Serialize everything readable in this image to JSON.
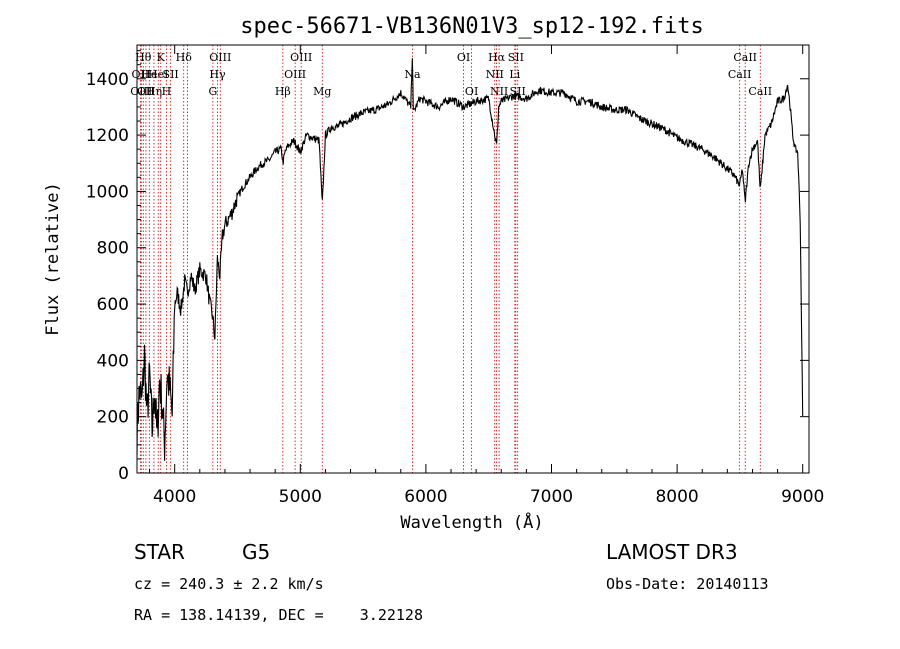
{
  "chart_data": {
    "type": "line",
    "title": "spec-56671-VB136N01V3_sp12-192.fits",
    "xlabel": "Wavelength (Å)",
    "ylabel": "Flux (relative)",
    "xlim": [
      3700,
      9050
    ],
    "ylim": [
      0,
      1520
    ],
    "x_ticks": [
      4000,
      5000,
      6000,
      7000,
      8000,
      9000
    ],
    "y_ticks": [
      0,
      200,
      400,
      600,
      800,
      1000,
      1200,
      1400
    ],
    "grid": false,
    "series": [
      {
        "color": "#000000",
        "x": [
          3700,
          3720,
          3740,
          3760,
          3780,
          3800,
          3820,
          3840,
          3860,
          3880,
          3900,
          3920,
          3940,
          3960,
          3980,
          4000,
          4020,
          4050,
          4080,
          4100,
          4130,
          4160,
          4200,
          4250,
          4280,
          4300,
          4320,
          4340,
          4360,
          4380,
          4400,
          4450,
          4500,
          4550,
          4600,
          4650,
          4700,
          4750,
          4800,
          4850,
          4861,
          4880,
          4900,
          4950,
          5000,
          5050,
          5100,
          5150,
          5175,
          5200,
          5250,
          5300,
          5400,
          5500,
          5600,
          5700,
          5800,
          5880,
          5893,
          5900,
          5950,
          6000,
          6100,
          6200,
          6300,
          6400,
          6500,
          6563,
          6580,
          6600,
          6700,
          6800,
          6900,
          7000,
          7100,
          7200,
          7300,
          7400,
          7500,
          7600,
          7700,
          7800,
          7900,
          8000,
          8100,
          8200,
          8300,
          8400,
          8450,
          8498,
          8520,
          8542,
          8570,
          8600,
          8640,
          8662,
          8700,
          8750,
          8800,
          8850,
          8880,
          8900,
          8920,
          8940,
          8960,
          8980,
          9000
        ],
        "y": [
          150,
          300,
          250,
          420,
          200,
          350,
          150,
          300,
          120,
          330,
          250,
          100,
          350,
          300,
          200,
          600,
          640,
          580,
          680,
          640,
          700,
          650,
          720,
          700,
          600,
          560,
          480,
          760,
          700,
          840,
          880,
          920,
          980,
          1020,
          1050,
          1080,
          1100,
          1110,
          1140,
          1150,
          1100,
          1140,
          1160,
          1180,
          1140,
          1200,
          1190,
          1180,
          950,
          1200,
          1230,
          1230,
          1260,
          1280,
          1290,
          1310,
          1350,
          1300,
          1500,
          1280,
          1330,
          1320,
          1300,
          1330,
          1300,
          1320,
          1330,
          1160,
          1300,
          1320,
          1340,
          1330,
          1360,
          1350,
          1350,
          1320,
          1320,
          1300,
          1290,
          1290,
          1260,
          1240,
          1220,
          1190,
          1170,
          1150,
          1120,
          1080,
          1060,
          1020,
          1080,
          960,
          1100,
          1150,
          1180,
          1000,
          1200,
          1240,
          1320,
          1330,
          1380,
          1300,
          1200,
          1150,
          1140,
          900,
          200
        ]
      }
    ],
    "lines": [
      {
        "wl": 3727,
        "label": "OII",
        "row": 2
      },
      {
        "wl": 3734,
        "label": "OIII",
        "row": 3
      },
      {
        "wl": 3750,
        "label": "Hθ",
        "row": 1
      },
      {
        "wl": 3771,
        "label": "OII",
        "row": 3
      },
      {
        "wl": 3798,
        "label": "He",
        "row": 2
      },
      {
        "wl": 3835,
        "label": "Hη",
        "row": 3
      },
      {
        "wl": 3869,
        "label": "HeI",
        "row": 2
      },
      {
        "wl": 3889,
        "label": "K",
        "row": 1
      },
      {
        "wl": 3934,
        "label": "H",
        "row": 3
      },
      {
        "wl": 3968,
        "label": "SII",
        "row": 2
      },
      {
        "wl": 4072,
        "label": "Hδ",
        "row": 1
      },
      {
        "wl": 4102,
        "label": "",
        "row": 0
      },
      {
        "wl": 4304,
        "label": "G",
        "row": 3
      },
      {
        "wl": 4341,
        "label": "Hγ",
        "row": 2
      },
      {
        "wl": 4363,
        "label": "OIII",
        "row": 1
      },
      {
        "wl": 4861,
        "label": "Hβ",
        "row": 3
      },
      {
        "wl": 4959,
        "label": "OIII",
        "row": 2
      },
      {
        "wl": 5007,
        "label": "OIII",
        "row": 1
      },
      {
        "wl": 5175,
        "label": "Mg",
        "row": 3
      },
      {
        "wl": 5893,
        "label": "Na",
        "row": 2
      },
      {
        "wl": 6300,
        "label": "OI",
        "row": 1
      },
      {
        "wl": 6364,
        "label": "OI",
        "row": 3
      },
      {
        "wl": 6548,
        "label": "NII",
        "row": 2
      },
      {
        "wl": 6563,
        "label": "Hα",
        "row": 1
      },
      {
        "wl": 6583,
        "label": "NII",
        "row": 3
      },
      {
        "wl": 6708,
        "label": "Li",
        "row": 2
      },
      {
        "wl": 6716,
        "label": "SII",
        "row": 1
      },
      {
        "wl": 6731,
        "label": "SII",
        "row": 3
      },
      {
        "wl": 8498,
        "label": "CaII",
        "row": 2
      },
      {
        "wl": 8542,
        "label": "CaII",
        "row": 1
      },
      {
        "wl": 8662,
        "label": "CaII",
        "row": 3
      }
    ]
  },
  "info": {
    "class": "STAR",
    "subclass": "G5",
    "survey": "LAMOST DR3",
    "cz": "cz = 240.3 ± 2.2 km/s",
    "obsdate": "Obs-Date: 20140113",
    "radec": "RA = 138.14139, DEC =    3.22128"
  }
}
